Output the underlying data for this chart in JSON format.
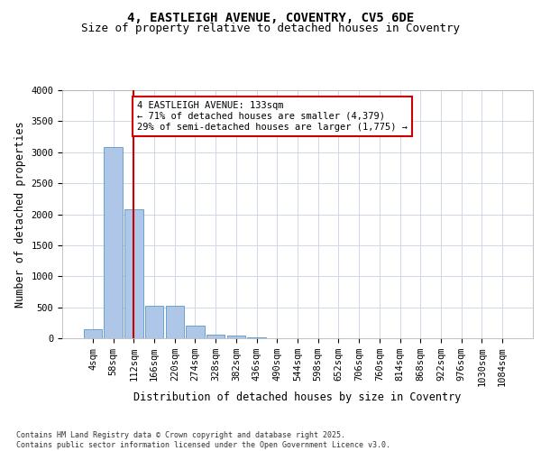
{
  "title_line1": "4, EASTLEIGH AVENUE, COVENTRY, CV5 6DE",
  "title_line2": "Size of property relative to detached houses in Coventry",
  "xlabel": "Distribution of detached houses by size in Coventry",
  "ylabel": "Number of detached properties",
  "bar_labels": [
    "4sqm",
    "58sqm",
    "112sqm",
    "166sqm",
    "220sqm",
    "274sqm",
    "328sqm",
    "382sqm",
    "436sqm",
    "490sqm",
    "544sqm",
    "598sqm",
    "652sqm",
    "706sqm",
    "760sqm",
    "814sqm",
    "868sqm",
    "922sqm",
    "976sqm",
    "1030sqm",
    "1084sqm"
  ],
  "bar_values": [
    150,
    3080,
    2080,
    530,
    530,
    200,
    60,
    40,
    20,
    0,
    0,
    0,
    0,
    0,
    0,
    0,
    0,
    0,
    0,
    0,
    0
  ],
  "bar_color": "#aec6e8",
  "bar_edge_color": "#5a96c8",
  "vline_x": 2,
  "vline_color": "#cc0000",
  "annotation_text": "4 EASTLEIGH AVENUE: 133sqm\n← 71% of detached houses are smaller (4,379)\n29% of semi-detached houses are larger (1,775) →",
  "annotation_box_color": "#cc0000",
  "ylim": [
    0,
    4000
  ],
  "yticks": [
    0,
    500,
    1000,
    1500,
    2000,
    2500,
    3000,
    3500,
    4000
  ],
  "background_color": "#ffffff",
  "grid_color": "#d0d8e8",
  "footer_text": "Contains HM Land Registry data © Crown copyright and database right 2025.\nContains public sector information licensed under the Open Government Licence v3.0.",
  "title_fontsize": 10,
  "subtitle_fontsize": 9,
  "tick_fontsize": 7.5,
  "label_fontsize": 8.5,
  "annotation_fontsize": 7.5
}
